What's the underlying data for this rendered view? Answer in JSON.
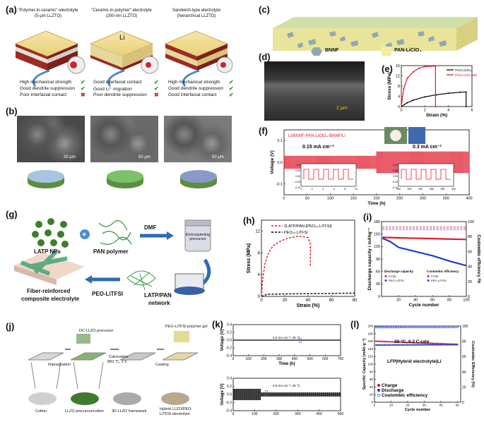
{
  "panels": {
    "a": {
      "label": "(a)",
      "columns": [
        {
          "title1": "\"Polymer-in-ceramic\" electrolyte",
          "title2": "(5-μm LLZTO)",
          "props": [
            {
              "text": "High mechanical strength",
              "ok": true
            },
            {
              "text": "Good dendrite suppression",
              "ok": true
            },
            {
              "text": "Poor interfacial contact",
              "ok": false
            }
          ]
        },
        {
          "title1": "\"Ceramic-in-polymer\" electrolyte",
          "title2": "(200-nm LLZTO)",
          "props": [
            {
              "text": "Good interfacial contact",
              "ok": true
            },
            {
              "text": "Good Li⁺ migration",
              "ok": true
            },
            {
              "text": "Poor dendrite suppression",
              "ok": false
            }
          ]
        },
        {
          "title1": "Sandwich-type electrolyte",
          "title2": "(hierarchical LLZTO)",
          "props": [
            {
              "text": "High mechanical strength",
              "ok": true
            },
            {
              "text": "Good dendrite suppression",
              "ok": true
            },
            {
              "text": "Good interfacial contact",
              "ok": true
            }
          ]
        }
      ],
      "li_label": "Li"
    },
    "b": {
      "label": "(b)",
      "scale1": "20 μm",
      "scale2": "50 μm",
      "scale3": "50 μm"
    },
    "c": {
      "label": "(c)",
      "legend1": "BNNF",
      "legend2": "PAN-LiClO₄"
    },
    "d": {
      "label": "(d)",
      "scale": "2 μm"
    },
    "e": {
      "label": "(e)",
      "chart_data": {
        "type": "line",
        "xlabel": "Strain (%)",
        "ylabel": "Stress (MPa)",
        "xticks": [
          "0",
          "2",
          "4",
          "6"
        ],
        "yticks": [
          "0",
          "4",
          "8",
          "12",
          "16"
        ],
        "xlim": [
          0,
          6
        ],
        "ylim": [
          0,
          16
        ],
        "series": [
          {
            "name": "PAN-LiClO₄",
            "color": "#000000",
            "x": [
              0,
              0.5,
              1,
              2,
              3,
              4,
              5,
              5.5,
              5.5
            ],
            "y": [
              0,
              1.5,
              2.5,
              3.8,
              4.6,
              5.2,
              5.6,
              5.7,
              0
            ]
          },
          {
            "name": "PAN-LiClO₄-BN",
            "color": "#e0192b",
            "x": [
              0,
              0.2,
              0.5,
              1,
              1.5,
              2,
              2.5,
              2.9,
              2.9
            ],
            "y": [
              0,
              7,
              11,
              13.5,
              15,
              15.6,
              15.8,
              15.8,
              0
            ]
          }
        ]
      }
    },
    "f": {
      "label": "(f)",
      "legend": "Li/BNNF-PAN-LiClO₄-BNNF/Li",
      "rate1": "0.15 mA cm⁻²",
      "rate2": "0.3 mA cm⁻²",
      "chart_data": {
        "type": "line",
        "xlabel": "Time (h)",
        "ylabel": "Voltage (V)",
        "xticks": [
          "0",
          "50",
          "100",
          "150",
          "200",
          "250",
          "300",
          "350",
          "400"
        ],
        "yticks": [
          "-0.1",
          "0.0",
          "0.1"
        ],
        "xlim": [
          0,
          400
        ],
        "ylim": [
          -0.15,
          0.15
        ],
        "inset1": {
          "xticks": [
            "0",
            "2",
            "4",
            "6",
            "8",
            "10"
          ],
          "yticks": [
            "0.10",
            "0.05",
            "0.00",
            "-0.05",
            "-0.10"
          ]
        },
        "inset2": {
          "xticks": [
            "350",
            "352",
            "354",
            "356",
            "358",
            "360"
          ],
          "yticks": [
            "0.10",
            "0.05",
            "0.00",
            "-0.05",
            "-0.10"
          ]
        }
      }
    },
    "g": {
      "label": "(g)",
      "texts": {
        "latp": "LATP NPs",
        "pan": "PAN polymer",
        "dmf": "DMF",
        "electro": "Elctrospinning precursor",
        "fiber1": "Fiber-reinforced",
        "fiber2": "composite electrolyte",
        "peo": "PEO-LiTFSI",
        "latppan1": "LATP/PAN",
        "latppan2": "network"
      }
    },
    "h": {
      "label": "(h)",
      "chart_data": {
        "type": "line",
        "xlabel": "Strain (%)",
        "ylabel": "Stress (MPa)",
        "xticks": [
          "0",
          "20",
          "40",
          "60",
          "80"
        ],
        "yticks": [
          "0",
          "4",
          "8",
          "12"
        ],
        "xlim": [
          0,
          80
        ],
        "ylim": [
          0,
          14
        ],
        "series": [
          {
            "name": "2LATP/PAN-[PEO₁₅-LiTFSI]",
            "color": "#e0192b",
            "dash": true,
            "x": [
              0,
              1,
              3,
              6,
              10,
              15,
              20,
              25,
              30,
              35,
              40,
              42,
              42
            ],
            "y": [
              0,
              3,
              6,
              8,
              9.3,
              10,
              10.5,
              10.8,
              11,
              11,
              10.8,
              9.5,
              5.5
            ]
          },
          {
            "name": "PEO₁₅-LiTFSI",
            "color": "#000000",
            "dash": true,
            "x": [
              0,
              5,
              20,
              40,
              60,
              80
            ],
            "y": [
              0,
              0.4,
              0.45,
              0.5,
              0.55,
              0.6
            ]
          }
        ]
      }
    },
    "i": {
      "label": "(i)",
      "chart_data": {
        "type": "scatter",
        "xlabel": "Cycle number",
        "ylabel": "Discharge capacity / mAhg⁻¹",
        "ylabel2": "Coulombic efficiency /%",
        "xticks": [
          "20",
          "40",
          "60",
          "80",
          "100"
        ],
        "yticks": [
          "0",
          "30",
          "60",
          "90",
          "120",
          "150",
          "180"
        ],
        "yticks2": [
          "0",
          "20",
          "40",
          "60",
          "80",
          "100"
        ],
        "xlim": [
          0,
          100
        ],
        "ylim": [
          0,
          180
        ],
        "series": [
          {
            "name": "FCSE (discharge)",
            "color": "#e0192b",
            "x": [
              1,
              20,
              40,
              60,
              80,
              100
            ],
            "y": [
              142,
              141,
              140,
              139,
              138,
              137
            ]
          },
          {
            "name": "PEO-LiTFSI (discharge)",
            "color": "#1a3fd0",
            "x": [
              1,
              10,
              20,
              40,
              60,
              80,
              100
            ],
            "y": [
              140,
              132,
              118,
              108,
              98,
              85,
              74
            ]
          }
        ],
        "legend_title1": "Discharge capacity",
        "legend_title2": "Coulombic efficiency",
        "legend_items": [
          "FCSE",
          "PEO-LiTFSI",
          "FCSE",
          "PEO-LiTFSI"
        ]
      }
    },
    "j": {
      "label": "(j)",
      "texts": {
        "dc": "DC-LLZO precursor",
        "peo": "PEO-LiTFSI polymer gel",
        "imp": "Impregnation",
        "calc1": "Calcination",
        "calc2": "800 °C, 2 h",
        "cast": "Casting",
        "cotton": "Cotton",
        "llzo": "LLZO precursor/cotton",
        "frame": "3D LLZO framework",
        "hyb1": "Hybrid LLZO/PEO-",
        "hyb2": "LiTFSI electrolyte"
      }
    },
    "k": {
      "label": "(k)",
      "top": {
        "note": "0.2 mA cm⁻², 25 °C",
        "xlabel": "Time (h)",
        "ylabel": "Voltage (V)",
        "xticks": [
          "0",
          "100",
          "200",
          "300",
          "400",
          "500",
          "600",
          "700"
        ],
        "yticks": [
          "0.4",
          "0.2",
          "0.0",
          "-0.2",
          "-0.4"
        ]
      },
      "bottom": {
        "note": "0.5 mA cm⁻², 25 °C",
        "ylabel": "Voltage (V)",
        "xticks": [
          "0",
          "100",
          "200",
          "300",
          "400",
          "500"
        ],
        "yticks": [
          "0.4",
          "0.2",
          "0.0",
          "-0.2",
          "-0.4"
        ]
      }
    },
    "l": {
      "label": "(l)",
      "chart_data": {
        "type": "scatter",
        "title": "30 °C, 0.2 C-rate",
        "subtitle": "LFP|Hybrid electrolyte|Li",
        "xlabel": "Cycle number",
        "ylabel": "Specific Capacity (mAh g⁻¹)",
        "ylabel2": "Coulombic Efficiency (%)",
        "xticks": [
          "0",
          "10",
          "20",
          "30",
          "40",
          "50"
        ],
        "yticks": [
          "0",
          "20",
          "40",
          "60",
          "80",
          "100",
          "120",
          "140",
          "160",
          "180",
          "200"
        ],
        "yticks2": [
          "0",
          "20",
          "40",
          "60",
          "80",
          "100"
        ],
        "xlim": [
          0,
          52
        ],
        "ylim": [
          0,
          200
        ],
        "series": [
          {
            "name": "Charge",
            "color": "#e0192b",
            "x": [
              1,
              10,
              20,
              30,
              40,
              50
            ],
            "y": [
              160,
              155,
              154,
              153,
              153,
              152
            ]
          },
          {
            "name": "Discharge",
            "color": "#1a3fd0",
            "x": [
              1,
              10,
              20,
              30,
              40,
              50
            ],
            "y": [
              150,
              153,
              152,
              152,
              151,
              151
            ]
          },
          {
            "name": "Coulombic efficiency",
            "color": "#1a3fd0",
            "x": [
              1,
              10,
              20,
              30,
              40,
              50
            ],
            "y": [
              197,
              198,
              198,
              198,
              198,
              198
            ]
          }
        ]
      }
    }
  }
}
